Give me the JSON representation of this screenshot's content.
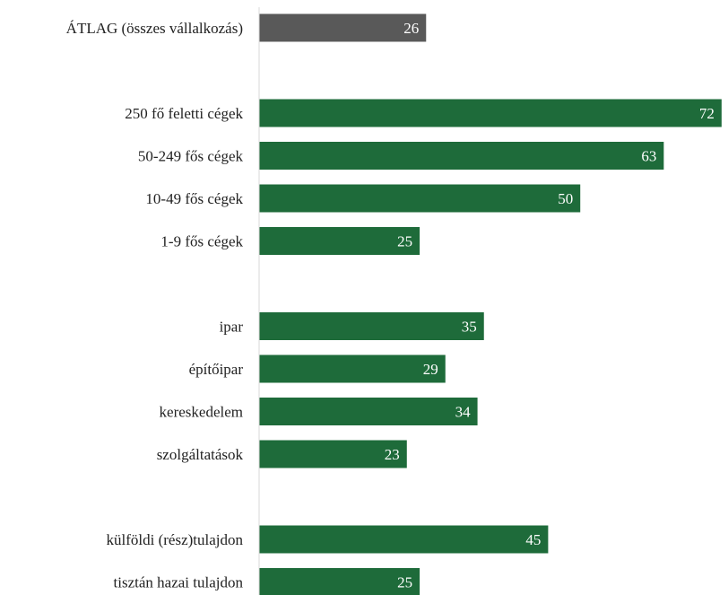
{
  "chart_data": {
    "type": "bar",
    "orientation": "horizontal",
    "categories": [
      "ÁTLAG (összes vállalkozás)",
      "",
      "250 fő feletti cégek",
      "50-249 fős cégek",
      "10-49 fős cégek",
      "1-9 fős cégek",
      "",
      "ipar",
      "építőipar",
      "kereskedelem",
      "szolgáltatások",
      "",
      "külföldi (rész)tulajdon",
      "tisztán hazai tulajdon"
    ],
    "values": [
      26,
      null,
      72,
      63,
      50,
      25,
      null,
      35,
      29,
      34,
      23,
      null,
      45,
      25
    ],
    "bar_colors": [
      "#595959",
      null,
      "#1e6b3a",
      "#1e6b3a",
      "#1e6b3a",
      "#1e6b3a",
      null,
      "#1e6b3a",
      "#1e6b3a",
      "#1e6b3a",
      "#1e6b3a",
      null,
      "#1e6b3a",
      "#1e6b3a"
    ],
    "xlim": [
      0,
      73
    ],
    "grid": false,
    "data_labels": "inside-end",
    "title": "",
    "xlabel": "",
    "ylabel": ""
  },
  "colors": {
    "average_bar": "#595959",
    "category_bar": "#1e6b3a",
    "axis_line": "#d9d9d9",
    "label_text": "#222222",
    "value_text": "#ffffff"
  }
}
